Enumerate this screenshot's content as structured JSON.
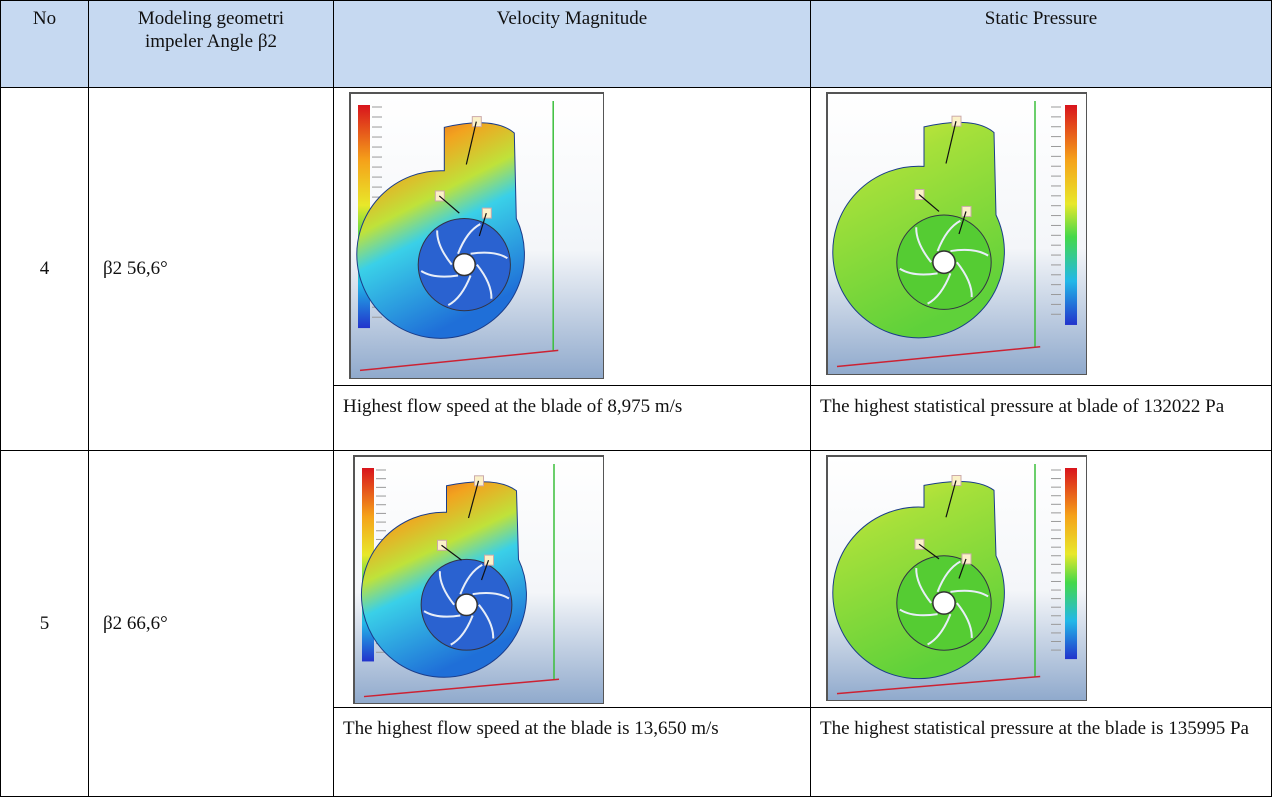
{
  "table": {
    "header": [
      "No",
      [
        "Modeling geometri",
        "impeler Angle β2"
      ],
      "Velocity Magnitude",
      "Static Pressure"
    ],
    "rows": [
      {
        "no": "4",
        "angle": "β2 56,6°",
        "velocity": "Highest flow speed at the blade of 8,975 m/s",
        "pressure": "The highest statistical pressure at blade of 132022 Pa"
      },
      {
        "no": "5",
        "angle": "β2 66,6°",
        "velocity": "The highest flow speed at the blade is 13,650 m/s",
        "pressure": "The highest statistical pressure at the blade is 135995 Pa"
      }
    ]
  }
}
